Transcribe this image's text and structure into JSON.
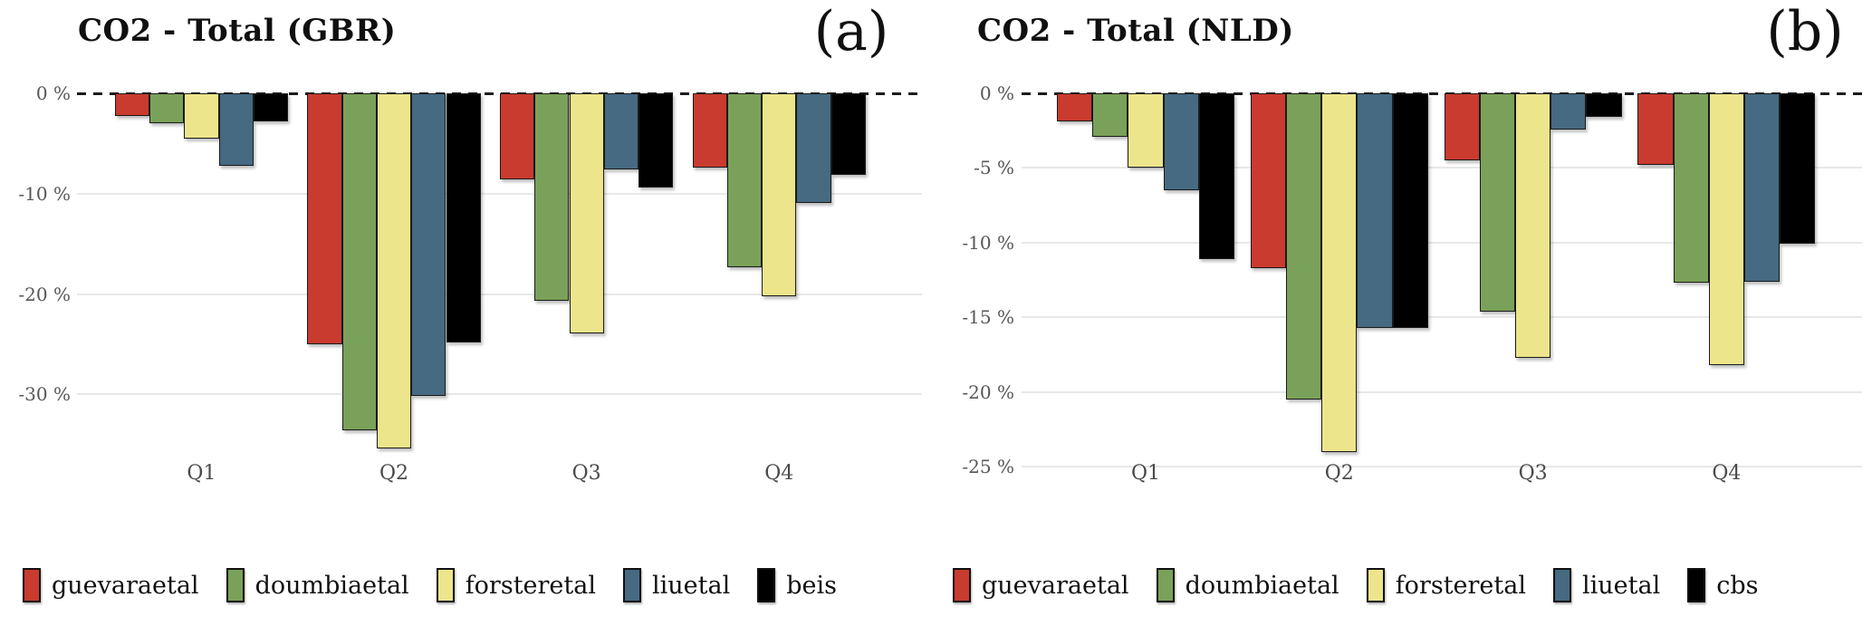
{
  "figure": {
    "background": "#ffffff",
    "panel_count": 2
  },
  "colors": {
    "guevaraetal": "#c93b2e",
    "doumbiaetal": "#7aa159",
    "forsteretal": "#ece58b",
    "liuetal": "#456a82",
    "beis": "#000000",
    "cbs": "#000000",
    "gridline": "#e8e8e8",
    "zero_line": "#1c1c1c",
    "tick_text": "#575757",
    "title_text": "#101010"
  },
  "chart_data": [
    {
      "type": "bar",
      "title": "CO2 - Total (GBR)",
      "panel_label": "(a)",
      "categories": [
        "Q1",
        "Q2",
        "Q3",
        "Q4"
      ],
      "series": [
        {
          "name": "guevaraetal",
          "color": "#c93b2e",
          "values": [
            -2.3,
            -25.0,
            -8.6,
            -7.4
          ]
        },
        {
          "name": "doumbiaetal",
          "color": "#7aa159",
          "values": [
            -3.0,
            -33.6,
            -20.7,
            -17.3
          ]
        },
        {
          "name": "forsteretal",
          "color": "#ece58b",
          "values": [
            -4.5,
            -35.4,
            -23.9,
            -20.2
          ]
        },
        {
          "name": "liuetal",
          "color": "#456a82",
          "values": [
            -7.2,
            -30.2,
            -7.6,
            -10.9
          ]
        },
        {
          "name": "beis",
          "color": "#000000",
          "values": [
            -2.8,
            -24.8,
            -9.4,
            -8.1
          ]
        }
      ],
      "ytick_labels": [
        "0 %",
        "-10 %",
        "-20 %",
        "-30 %"
      ],
      "ytick_values": [
        0,
        -10,
        -20,
        -30
      ],
      "ylim": [
        -37.2,
        0
      ],
      "ylabel": "",
      "xlabel": "",
      "grid": true,
      "zero_line_style": "dashed",
      "legend_position": "bottom"
    },
    {
      "type": "bar",
      "title": "CO2 - Total (NLD)",
      "panel_label": "(b)",
      "categories": [
        "Q1",
        "Q2",
        "Q3",
        "Q4"
      ],
      "series": [
        {
          "name": "guevaraetal",
          "color": "#c93b2e",
          "values": [
            -1.9,
            -11.7,
            -4.5,
            -4.8
          ]
        },
        {
          "name": "doumbiaetal",
          "color": "#7aa159",
          "values": [
            -2.9,
            -20.5,
            -14.6,
            -12.7
          ]
        },
        {
          "name": "forsteretal",
          "color": "#ece58b",
          "values": [
            -5.0,
            -24.0,
            -17.7,
            -18.2
          ]
        },
        {
          "name": "liuetal",
          "color": "#456a82",
          "values": [
            -6.5,
            -15.7,
            -2.4,
            -12.6
          ]
        },
        {
          "name": "cbs",
          "color": "#000000",
          "values": [
            -11.1,
            -15.7,
            -1.6,
            -10.1
          ]
        }
      ],
      "ytick_labels": [
        "0 %",
        "-5 %",
        "-10 %",
        "-15 %",
        "-20 %",
        "-25 %"
      ],
      "ytick_values": [
        0,
        -5,
        -10,
        -15,
        -20,
        -25
      ],
      "ylim": [
        -25,
        0
      ],
      "ylabel": "",
      "xlabel": "",
      "grid": true,
      "zero_line_style": "dashed",
      "legend_position": "bottom"
    }
  ]
}
